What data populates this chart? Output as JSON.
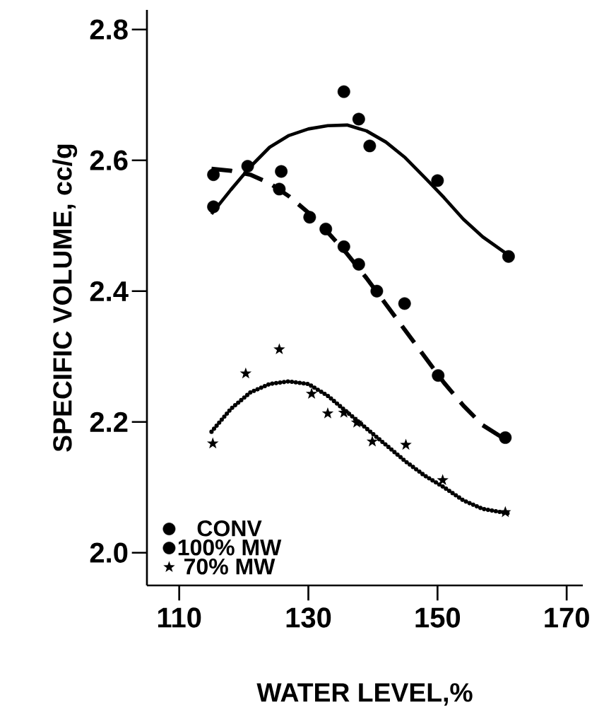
{
  "chart_data": {
    "type": "scatter",
    "xlabel": "WATER LEVEL,%",
    "ylabel": "SPECIFIC  VOLUME, cc/g",
    "xlim": [
      105,
      172.5
    ],
    "ylim": [
      1.95,
      2.83
    ],
    "xticks": [
      110,
      130,
      150,
      170
    ],
    "yticks": [
      {
        "value": 2.0,
        "label": "2.0"
      },
      {
        "value": 2.2,
        "label": "2.2"
      },
      {
        "value": 2.4,
        "label": "2.4"
      },
      {
        "value": 2.6,
        "label": "2.6"
      },
      {
        "value": 2.8,
        "label": "2.8"
      }
    ],
    "grid": false,
    "legend": "bottom left",
    "series": [
      {
        "name": "CONV",
        "type": "scatter",
        "marker": "circle",
        "color": "#000000",
        "x": [
          115.3,
          125.8,
          135.5,
          137.8,
          139.5,
          150,
          161
        ],
        "values": [
          2.529,
          2.583,
          2.705,
          2.663,
          2.622,
          2.569,
          2.453
        ]
      },
      {
        "name": "100% MW",
        "type": "scatter",
        "marker": "circle",
        "color": "#000000",
        "x": [
          115.3,
          120.6,
          125.5,
          130.2,
          132.7,
          135.5,
          137.8,
          140.6,
          144.9,
          150.1,
          160.5
        ],
        "values": [
          2.578,
          2.591,
          2.556,
          2.513,
          2.495,
          2.468,
          2.441,
          2.4,
          2.381,
          2.271,
          2.176
        ]
      },
      {
        "name": "70% MW",
        "type": "scatter",
        "marker": "star",
        "color": "#000000",
        "x": [
          115.2,
          120.3,
          125.5,
          130.5,
          133.0,
          135.5,
          137.5,
          139.9,
          145.1,
          150.8,
          160.5
        ],
        "values": [
          2.167,
          2.274,
          2.311,
          2.243,
          2.213,
          2.214,
          2.199,
          2.17,
          2.165,
          2.111,
          2.062
        ]
      },
      {
        "type": "line",
        "line_style": "solid",
        "marker": "none",
        "color": "#000000",
        "x": [
          115,
          118,
          121,
          124,
          127,
          130,
          133,
          136,
          139,
          142,
          145,
          148,
          151,
          154,
          157,
          161
        ],
        "values": [
          2.518,
          2.555,
          2.59,
          2.62,
          2.638,
          2.648,
          2.653,
          2.654,
          2.645,
          2.628,
          2.604,
          2.574,
          2.543,
          2.51,
          2.483,
          2.455
        ]
      },
      {
        "type": "line",
        "line_style": "dashed",
        "marker": "none",
        "color": "#000000",
        "x": [
          115,
          118,
          121,
          124,
          127,
          130,
          133,
          136,
          139,
          142,
          145,
          148,
          151,
          154,
          157,
          161
        ],
        "values": [
          2.587,
          2.584,
          2.578,
          2.565,
          2.545,
          2.52,
          2.49,
          2.457,
          2.42,
          2.38,
          2.34,
          2.3,
          2.26,
          2.225,
          2.195,
          2.17
        ]
      },
      {
        "type": "line",
        "line_style": "dotted",
        "marker": "none",
        "color": "#000000",
        "x": [
          115,
          118,
          121,
          124,
          127,
          130,
          133,
          136,
          139,
          142,
          145,
          148,
          151,
          154,
          157,
          161
        ],
        "values": [
          2.185,
          2.22,
          2.245,
          2.258,
          2.262,
          2.258,
          2.24,
          2.215,
          2.19,
          2.165,
          2.14,
          2.118,
          2.1,
          2.08,
          2.067,
          2.06
        ]
      }
    ]
  }
}
